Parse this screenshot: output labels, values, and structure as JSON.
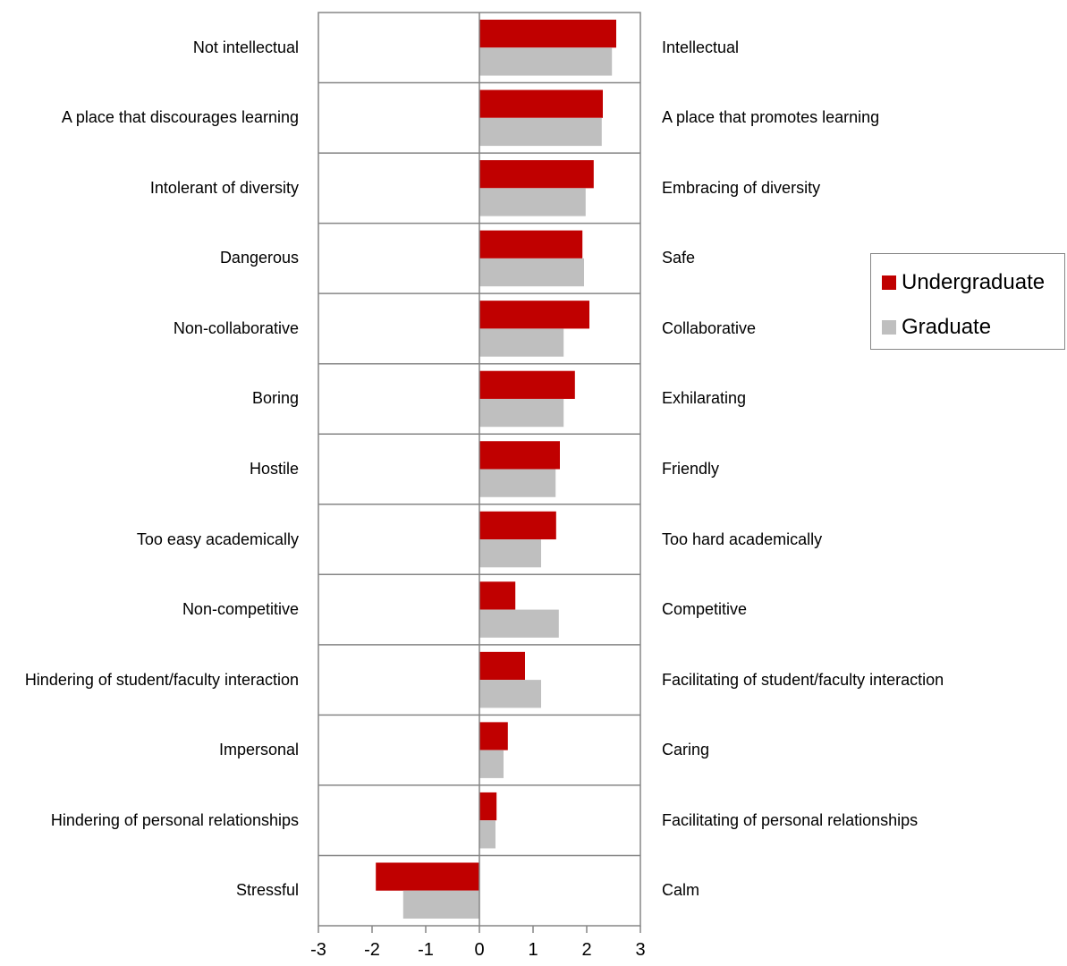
{
  "chart_data": {
    "type": "bar",
    "orientation": "horizontal",
    "categories": [
      "Not intellectual",
      "A place that discourages learning",
      "Intolerant of diversity",
      "Dangerous",
      "Non-collaborative",
      "Boring",
      "Hostile",
      "Too easy academically",
      "Non-competitive",
      "Hindering of student/faculty interaction",
      "Impersonal",
      "Hindering of personal relationships",
      "Stressful"
    ],
    "right_labels": [
      "Intellectual",
      "A place that promotes learning",
      "Embracing of diversity",
      "Safe",
      "Collaborative",
      "Exhilarating",
      "Friendly",
      "Too hard academically",
      "Competitive",
      "Facilitating of student/faculty interaction",
      "Caring",
      "Facilitating of personal relationships",
      "Calm"
    ],
    "series": [
      {
        "name": "Undergraduate",
        "color": "#c00000",
        "values": [
          2.55,
          2.3,
          2.13,
          1.92,
          2.05,
          1.78,
          1.5,
          1.43,
          0.67,
          0.85,
          0.53,
          0.32,
          -1.93
        ]
      },
      {
        "name": "Graduate",
        "color": "#bfbfbf",
        "values": [
          2.47,
          2.28,
          1.98,
          1.95,
          1.57,
          1.57,
          1.42,
          1.15,
          1.48,
          1.15,
          0.45,
          0.3,
          -1.42
        ]
      }
    ],
    "xlim": [
      -3,
      3
    ],
    "xticks": [
      -3,
      -2,
      -1,
      0,
      1,
      2,
      3
    ],
    "grid": true,
    "legend": "right"
  }
}
